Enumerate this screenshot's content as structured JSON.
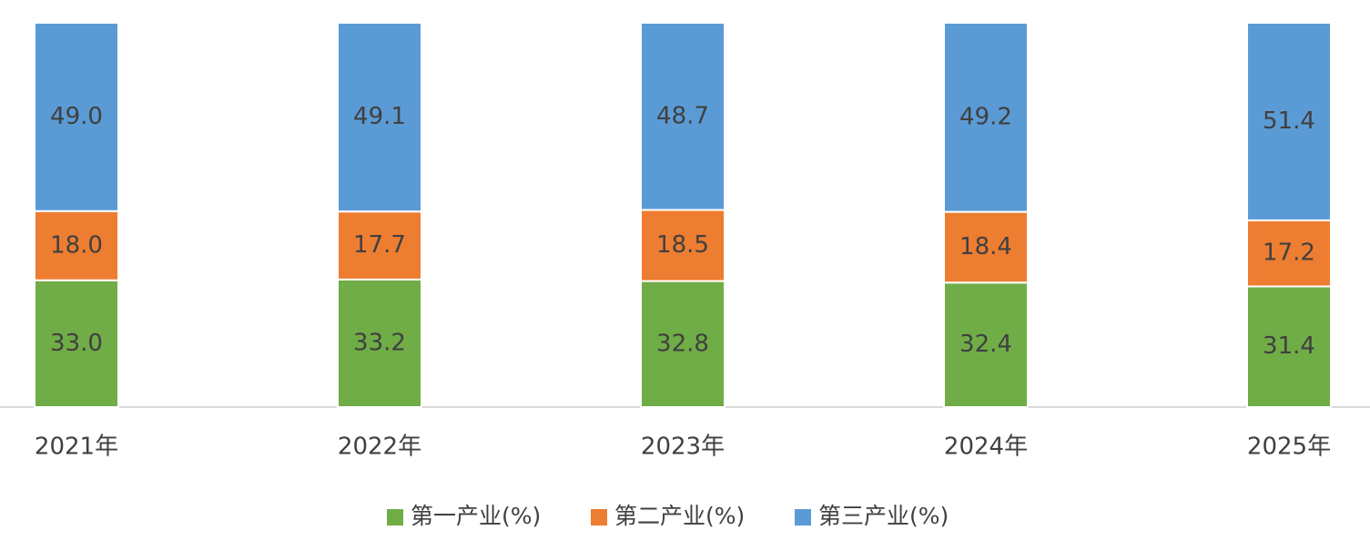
{
  "chart_data": {
    "type": "stacked-bar",
    "categories": [
      "2021年",
      "2022年",
      "2023年",
      "2024年",
      "2025年"
    ],
    "series": [
      {
        "name": "第一产业(%)",
        "color": "#70ad47",
        "values": [
          33.0,
          33.2,
          32.8,
          32.4,
          31.4
        ],
        "value_labels": [
          "33.0",
          "33.2",
          "32.8",
          "32.4",
          "31.4"
        ]
      },
      {
        "name": "第二产业(%)",
        "color": "#ed7d31",
        "values": [
          18.0,
          17.7,
          18.5,
          18.4,
          17.2
        ],
        "value_labels": [
          "18.0",
          "17.7",
          "18.5",
          "18.4",
          "17.2"
        ]
      },
      {
        "name": "第三产业(%)",
        "color": "#5b9bd5",
        "values": [
          49.0,
          49.1,
          48.7,
          49.2,
          51.4
        ],
        "value_labels": [
          "49.0",
          "49.1",
          "48.7",
          "49.2",
          "51.4"
        ]
      }
    ],
    "legend": "bottom"
  }
}
